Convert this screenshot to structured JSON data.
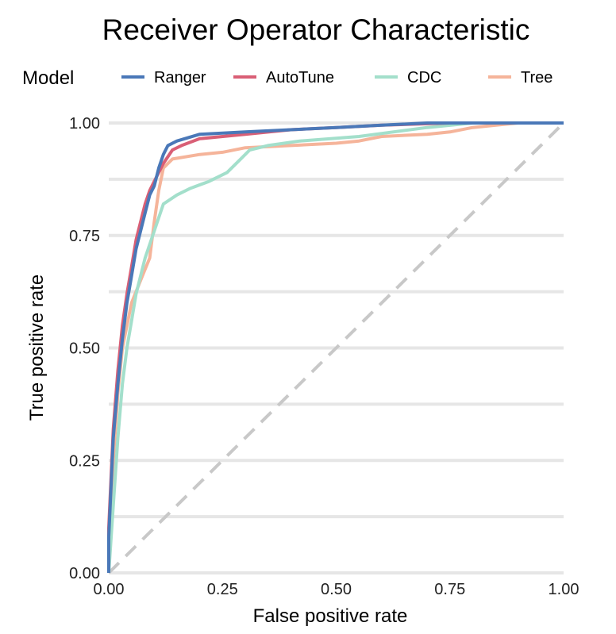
{
  "chart_data": {
    "type": "line",
    "title": "Receiver Operator Characteristic",
    "xlabel": "False positive rate",
    "ylabel": "True positive rate",
    "xlim": [
      0,
      1
    ],
    "ylim": [
      0,
      1
    ],
    "xticks": [
      "0.00",
      "0.25",
      "0.50",
      "0.75",
      "1.00"
    ],
    "yticks": [
      "0.00",
      "0.25",
      "0.50",
      "0.75",
      "1.00"
    ],
    "grid": "horizontal",
    "legend": {
      "title": "Model",
      "position": "top"
    },
    "reference_line": {
      "style": "dashed",
      "color": "#c8c8c8",
      "points": [
        [
          0,
          0
        ],
        [
          1,
          1
        ]
      ]
    },
    "series": [
      {
        "name": "Ranger",
        "color": "#4a78b8",
        "points": [
          [
            0,
            0
          ],
          [
            0,
            0.08
          ],
          [
            0.01,
            0.3
          ],
          [
            0.02,
            0.42
          ],
          [
            0.03,
            0.52
          ],
          [
            0.04,
            0.6
          ],
          [
            0.05,
            0.66
          ],
          [
            0.06,
            0.72
          ],
          [
            0.07,
            0.76
          ],
          [
            0.08,
            0.8
          ],
          [
            0.09,
            0.84
          ],
          [
            0.1,
            0.86
          ],
          [
            0.11,
            0.9
          ],
          [
            0.12,
            0.93
          ],
          [
            0.13,
            0.95
          ],
          [
            0.15,
            0.96
          ],
          [
            0.2,
            0.975
          ],
          [
            0.3,
            0.98
          ],
          [
            0.4,
            0.985
          ],
          [
            0.5,
            0.99
          ],
          [
            0.6,
            0.995
          ],
          [
            0.7,
            1
          ],
          [
            1,
            1
          ]
        ]
      },
      {
        "name": "AutoTune",
        "color": "#d95f76",
        "points": [
          [
            0,
            0
          ],
          [
            0,
            0.1
          ],
          [
            0.01,
            0.32
          ],
          [
            0.02,
            0.45
          ],
          [
            0.03,
            0.55
          ],
          [
            0.04,
            0.62
          ],
          [
            0.05,
            0.68
          ],
          [
            0.06,
            0.74
          ],
          [
            0.07,
            0.78
          ],
          [
            0.08,
            0.82
          ],
          [
            0.09,
            0.85
          ],
          [
            0.1,
            0.87
          ],
          [
            0.11,
            0.89
          ],
          [
            0.12,
            0.91
          ],
          [
            0.14,
            0.94
          ],
          [
            0.16,
            0.95
          ],
          [
            0.2,
            0.965
          ],
          [
            0.3,
            0.975
          ],
          [
            0.4,
            0.985
          ],
          [
            0.5,
            0.99
          ],
          [
            0.6,
            0.995
          ],
          [
            0.75,
            1
          ],
          [
            1,
            1
          ]
        ]
      },
      {
        "name": "CDC",
        "color": "#a3dfcb",
        "points": [
          [
            0,
            0
          ],
          [
            0.01,
            0.15
          ],
          [
            0.02,
            0.3
          ],
          [
            0.03,
            0.42
          ],
          [
            0.04,
            0.5
          ],
          [
            0.05,
            0.56
          ],
          [
            0.06,
            0.62
          ],
          [
            0.08,
            0.7
          ],
          [
            0.1,
            0.76
          ],
          [
            0.12,
            0.82
          ],
          [
            0.15,
            0.84
          ],
          [
            0.18,
            0.855
          ],
          [
            0.22,
            0.87
          ],
          [
            0.26,
            0.89
          ],
          [
            0.29,
            0.92
          ],
          [
            0.31,
            0.94
          ],
          [
            0.35,
            0.95
          ],
          [
            0.42,
            0.96
          ],
          [
            0.55,
            0.97
          ],
          [
            0.7,
            0.99
          ],
          [
            0.8,
            1
          ],
          [
            1,
            1
          ]
        ]
      },
      {
        "name": "Tree",
        "color": "#f5b49a",
        "points": [
          [
            0,
            0
          ],
          [
            0,
            0.05
          ],
          [
            0.01,
            0.25
          ],
          [
            0.02,
            0.4
          ],
          [
            0.03,
            0.5
          ],
          [
            0.05,
            0.6
          ],
          [
            0.07,
            0.65
          ],
          [
            0.09,
            0.7
          ],
          [
            0.1,
            0.78
          ],
          [
            0.11,
            0.85
          ],
          [
            0.12,
            0.9
          ],
          [
            0.14,
            0.92
          ],
          [
            0.2,
            0.93
          ],
          [
            0.25,
            0.935
          ],
          [
            0.3,
            0.945
          ],
          [
            0.4,
            0.95
          ],
          [
            0.5,
            0.955
          ],
          [
            0.55,
            0.96
          ],
          [
            0.6,
            0.97
          ],
          [
            0.7,
            0.975
          ],
          [
            0.75,
            0.98
          ],
          [
            0.8,
            0.99
          ],
          [
            0.9,
            1
          ],
          [
            1,
            1
          ]
        ]
      }
    ]
  }
}
